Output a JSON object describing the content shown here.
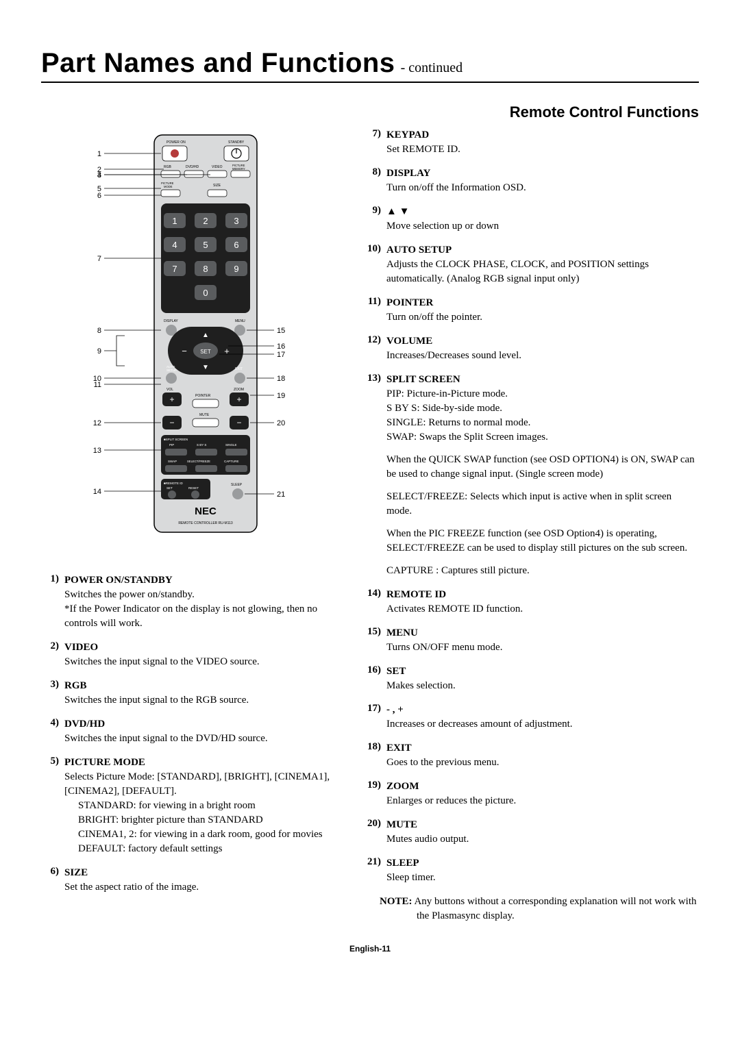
{
  "header": {
    "title": "Part Names and Functions",
    "continued": "- continued",
    "subtitle": "Remote Control Functions"
  },
  "remote": {
    "brand": "NEC",
    "model": "REMOTE CONTROLLER RU-M113",
    "labels": {
      "power_on": "POWER ON",
      "standby": "STANDBY",
      "rgb": "RGB",
      "dvd_hd": "DVD/HD",
      "video": "VIDEO",
      "picture_memory": "PICTURE MEMORY",
      "picture_mode": "PICTURE MODE",
      "size": "SIZE",
      "display": "DISPLAY",
      "menu": "MENU",
      "set": "SET",
      "auto_setup": "AUTO SETUP",
      "exit": "EXIT",
      "vol": "VOL",
      "zoom": "ZOOM",
      "pointer": "POINTER",
      "mute": "MUTE",
      "split_screen": "SPLIT SCREEN",
      "pip": "PIP",
      "s_by_s": "S BY S",
      "single": "SINGLE",
      "swap": "SWAP",
      "select_freeze": "SELECT/FREEZE",
      "capture": "CAPTURE",
      "remote_id": "REMOTE ID",
      "set_small": "SET",
      "reset": "RESET",
      "sleep": "SLEEP"
    },
    "callouts_left": [
      "1",
      "2",
      "3",
      "4",
      "5",
      "6",
      "7",
      "8",
      "9",
      "10",
      "11",
      "12",
      "13",
      "14"
    ],
    "callouts_right": [
      "15",
      "16",
      "17",
      "18",
      "19",
      "20",
      "21"
    ]
  },
  "left_items": [
    {
      "num": "1)",
      "title": "POWER ON/STANDBY",
      "lines": [
        "Switches the power on/standby.",
        "*If the Power Indicator on the display is not glowing, then no controls will work."
      ]
    },
    {
      "num": "2)",
      "title": "VIDEO",
      "lines": [
        "Switches the input signal to the VIDEO source."
      ]
    },
    {
      "num": "3)",
      "title": "RGB",
      "lines": [
        "Switches the input signal to the RGB source."
      ]
    },
    {
      "num": "4)",
      "title": "DVD/HD",
      "lines": [
        "Switches the input signal to the DVD/HD source."
      ]
    },
    {
      "num": "5)",
      "title": "PICTURE MODE",
      "lines": [
        "Selects Picture Mode: [STANDARD], [BRIGHT], [CINEMA1], [CINEMA2], [DEFAULT]."
      ],
      "sublines": [
        "STANDARD: for viewing in a bright room",
        "BRIGHT: brighter picture than STANDARD",
        "CINEMA1, 2: for viewing in a dark room, good for movies",
        "DEFAULT: factory default settings"
      ]
    },
    {
      "num": "6)",
      "title": "SIZE",
      "lines": [
        "Set the aspect ratio of the image."
      ]
    }
  ],
  "right_items": [
    {
      "num": "7)",
      "title": "KEYPAD",
      "lines": [
        "Set REMOTE ID."
      ]
    },
    {
      "num": "8)",
      "title": "DISPLAY",
      "lines": [
        "Turn on/off the Information OSD."
      ]
    },
    {
      "num": "9)",
      "title": "▲ ▼",
      "lines": [
        "Move selection up or down"
      ]
    },
    {
      "num": "10)",
      "title": "AUTO SETUP",
      "lines": [
        "Adjusts the CLOCK PHASE, CLOCK, and POSITION settings automatically. (Analog RGB signal input only)"
      ]
    },
    {
      "num": "11)",
      "title": "POINTER",
      "lines": [
        "Turn on/off the pointer."
      ]
    },
    {
      "num": "12)",
      "title": "VOLUME",
      "lines": [
        "Increases/Decreases sound level."
      ]
    },
    {
      "num": "13)",
      "title": "SPLIT SCREEN",
      "lines": [
        "PIP: Picture-in-Picture mode.",
        "S BY S: Side-by-side mode.",
        "SINGLE: Returns to normal mode.",
        "SWAP: Swaps the Split Screen images."
      ],
      "paragraphs": [
        "When the QUICK SWAP function (see OSD OPTION4) is ON, SWAP can be used to change signal input. (Single screen mode)",
        "SELECT/FREEZE: Selects which input is active when in split screen mode.",
        "When the PIC FREEZE function (see OSD Option4) is operating, SELECT/FREEZE can be used to display still pictures on the sub screen.",
        "CAPTURE : Captures still picture."
      ]
    },
    {
      "num": "14)",
      "title": "REMOTE ID",
      "lines": [
        "Activates REMOTE ID function."
      ]
    },
    {
      "num": "15)",
      "title": "MENU",
      "lines": [
        "Turns ON/OFF menu mode."
      ]
    },
    {
      "num": "16)",
      "title": "SET",
      "lines": [
        "Makes selection."
      ]
    },
    {
      "num": "17)",
      "title": "- , +",
      "lines": [
        "Increases or decreases amount of adjustment."
      ]
    },
    {
      "num": "18)",
      "title": "EXIT",
      "lines": [
        "Goes to the previous menu."
      ]
    },
    {
      "num": "19)",
      "title": "ZOOM",
      "lines": [
        "Enlarges or reduces the picture."
      ]
    },
    {
      "num": "20)",
      "title": "MUTE",
      "lines": [
        "Mutes audio output."
      ]
    },
    {
      "num": "21)",
      "title": "SLEEP",
      "lines": [
        "Sleep timer."
      ]
    }
  ],
  "note": {
    "label": "NOTE:",
    "text": "Any buttons without a corresponding explanation will not work with the Plasmasync display."
  },
  "page_num": "English-11",
  "colors": {
    "bg": "#ffffff",
    "text": "#000000",
    "remote_body": "#d9dadb",
    "remote_dark": "#1f1f1f",
    "keypad_btn": "#5a5c5e",
    "round_btn_grey": "#9a9c9e",
    "round_btn_dark": "#2b2b2b"
  }
}
